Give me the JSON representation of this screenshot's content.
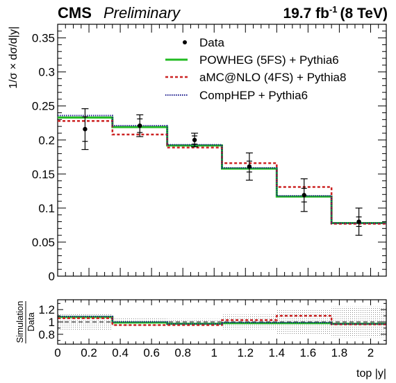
{
  "header": {
    "experiment": "CMS",
    "status": "Preliminary",
    "lumi_value": "19.7 fb",
    "lumi_exponent": "-1",
    "energy": "(8 TeV)"
  },
  "chart_data": [
    {
      "type": "line",
      "panel": "main",
      "ylabel": "1/σ × dσ/d|y|",
      "xlim": [
        0,
        2.1
      ],
      "ylim": [
        0,
        0.37
      ],
      "yticks": [
        0,
        0.05,
        0.1,
        0.15,
        0.2,
        0.25,
        0.3,
        0.35
      ],
      "ytick_labels": [
        "0",
        "0.05",
        "0.1",
        "0.15",
        "0.2",
        "0.25",
        "0.3",
        "0.35"
      ],
      "bin_edges": [
        0,
        0.35,
        0.7,
        1.05,
        1.4,
        1.75,
        2.1
      ],
      "legend_position": "top-right",
      "series": [
        {
          "name": "Data",
          "style": "points",
          "color": "#000000",
          "x": [
            0.175,
            0.525,
            0.875,
            1.225,
            1.575,
            1.925
          ],
          "values": [
            0.216,
            0.221,
            0.2,
            0.161,
            0.119,
            0.08
          ],
          "stat_err": [
            0.018,
            0.01,
            0.006,
            0.008,
            0.01,
            0.007
          ],
          "total_err": [
            0.03,
            0.016,
            0.01,
            0.02,
            0.024,
            0.02
          ]
        },
        {
          "name": "POWHEG (5FS) + Pythia6",
          "style": "solid",
          "color": "#22bb22",
          "values": [
            0.233,
            0.219,
            0.192,
            0.158,
            0.117,
            0.078
          ]
        },
        {
          "name": "aMC@NLO (4FS) + Pythia8",
          "style": "dashed",
          "color": "#cc2222",
          "values": [
            0.228,
            0.208,
            0.189,
            0.166,
            0.131,
            0.077
          ]
        },
        {
          "name": "CompHEP + Pythia6",
          "style": "dotted",
          "color": "#1a1a8c",
          "values": [
            0.236,
            0.221,
            0.193,
            0.159,
            0.118,
            0.078
          ]
        }
      ]
    },
    {
      "type": "line",
      "panel": "ratio",
      "ylabel_numerator": "Simulation",
      "ylabel_denominator": "Data",
      "xlabel": "top |y|",
      "xlim": [
        0,
        2.1
      ],
      "ylim": [
        0.64,
        1.36
      ],
      "yticks": [
        0.8,
        1,
        1.2
      ],
      "ytick_labels": [
        "0.8",
        "1",
        "1.2"
      ],
      "xticks": [
        0,
        0.2,
        0.4,
        0.6,
        0.8,
        1,
        1.2,
        1.4,
        1.6,
        1.8,
        2
      ],
      "xtick_labels": [
        "0",
        "0.2",
        "0.4",
        "0.6",
        "0.8",
        "1",
        "1.2",
        "1.4",
        "1.6",
        "1.8",
        "2"
      ],
      "bin_edges": [
        0,
        0.35,
        0.7,
        1.05,
        1.4,
        1.75,
        2.1
      ],
      "reference_line": 1,
      "uncertainty_band": [
        0.14,
        0.07,
        0.05,
        0.12,
        0.2,
        0.25
      ],
      "series": [
        {
          "name": "POWHEG (5FS) + Pythia6",
          "style": "solid",
          "color": "#22bb22",
          "values": [
            1.08,
            0.99,
            0.97,
            0.98,
            0.98,
            0.97
          ]
        },
        {
          "name": "aMC@NLO (4FS) + Pythia8",
          "style": "dashed",
          "color": "#cc2222",
          "values": [
            1.06,
            0.95,
            0.95,
            1.03,
            1.1,
            0.96
          ]
        },
        {
          "name": "CompHEP + Pythia6",
          "style": "dotted",
          "color": "#1a1a8c",
          "values": [
            1.09,
            1.0,
            0.97,
            0.99,
            0.99,
            0.97
          ]
        }
      ]
    }
  ]
}
